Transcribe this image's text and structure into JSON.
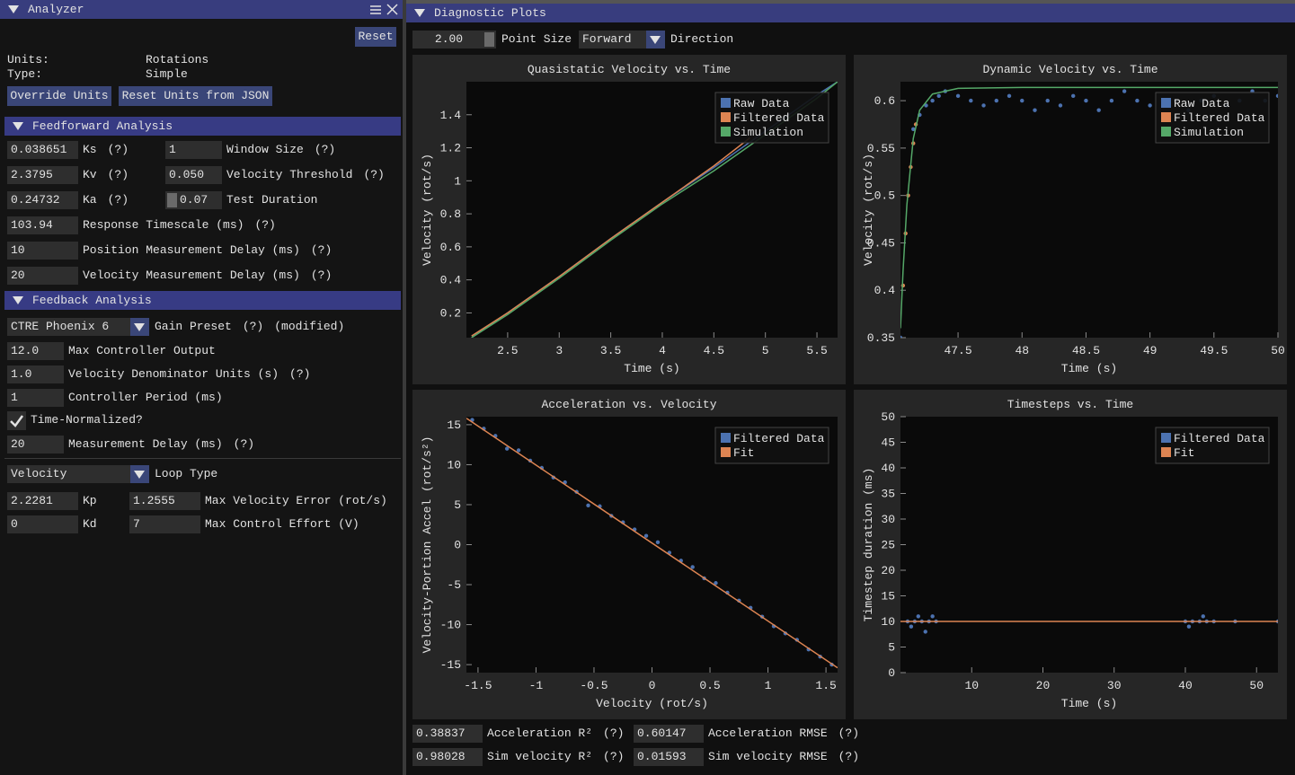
{
  "analyzer": {
    "title": "Analyzer",
    "reset": "Reset",
    "units_label": "Units:",
    "units": "Rotations",
    "type_label": "Type:",
    "type": "Simple",
    "override_units": "Override Units",
    "reset_units": "Reset Units from JSON",
    "feedforward": {
      "title": "Feedforward Analysis",
      "gains": [
        {
          "value": "0.038651",
          "label": "Ks",
          "help": "(?)"
        },
        {
          "value": "2.3795",
          "label": "Kv",
          "help": "(?)"
        },
        {
          "value": "0.24732",
          "label": "Ka",
          "help": "(?)"
        }
      ],
      "settings": [
        {
          "value": "1",
          "label": "Window Size",
          "help": "(?)"
        },
        {
          "value": "0.050",
          "label": "Velocity Threshold",
          "help": "(?)"
        },
        {
          "value": "0.07",
          "label": "Test Duration"
        }
      ],
      "rows": [
        {
          "value": "103.94",
          "label": "Response Timescale (ms)",
          "help": "(?)"
        },
        {
          "value": "10",
          "label": "Position Measurement Delay (ms)",
          "help": "(?)"
        },
        {
          "value": "20",
          "label": "Velocity Measurement Delay (ms)",
          "help": "(?)"
        }
      ]
    },
    "feedback": {
      "title": "Feedback Analysis",
      "preset": "CTRE Phoenix 6",
      "preset_label": "Gain Preset",
      "preset_help": "(?)",
      "preset_note": "(modified)",
      "rows": [
        {
          "value": "12.0",
          "label": "Max Controller Output"
        },
        {
          "value": "1.0",
          "label": "Velocity Denominator Units (s)",
          "help": "(?)"
        },
        {
          "value": "1",
          "label": "Controller Period (ms)"
        }
      ],
      "time_normalized": "Time-Normalized?",
      "delay": {
        "value": "20",
        "label": "Measurement Delay (ms)",
        "help": "(?)"
      },
      "loop_type": "Velocity",
      "loop_type_label": "Loop Type",
      "gains": [
        {
          "value": "2.2281",
          "label": "Kp"
        },
        {
          "value": "0",
          "label": "Kd"
        }
      ],
      "limits": [
        {
          "value": "1.2555",
          "label": "Max Velocity Error (rot/s)"
        },
        {
          "value": "7",
          "label": "Max Control Effort (V)"
        }
      ]
    }
  },
  "diagnostics": {
    "title": "Diagnostic Plots",
    "point_size": "2.00",
    "point_size_label": "Point Size",
    "direction": "Forward",
    "direction_label": "Direction",
    "stats": [
      {
        "value": "0.38837",
        "label": "Acceleration R²",
        "help": "(?)"
      },
      {
        "value": "0.60147",
        "label": "Acceleration RMSE",
        "help": "(?)"
      },
      {
        "value": "0.98028",
        "label": "Sim velocity R²",
        "help": "(?)"
      },
      {
        "value": "0.01593",
        "label": "Sim velocity RMSE",
        "help": "(?)"
      }
    ]
  },
  "chart_data": [
    {
      "type": "line",
      "title": "Quasistatic Velocity vs. Time",
      "x_label": "Time (s)",
      "y_label": "Velocity (rot/s)",
      "xlim": [
        2.1,
        5.7
      ],
      "xticks": [
        2.5,
        3,
        3.5,
        4,
        4.5,
        5,
        5.5
      ],
      "ylim": [
        0.05,
        1.6
      ],
      "yticks": [
        0.2,
        0.4,
        0.6,
        0.8,
        1,
        1.2,
        1.4
      ],
      "grid": false,
      "legend": "top-right",
      "series": [
        {
          "name": "Raw Data",
          "type": "line",
          "color": "#4c72b0",
          "x": [
            2.15,
            2.5,
            3,
            3.5,
            4,
            4.5,
            5,
            5.5,
            5.7
          ],
          "values": [
            0.05,
            0.2,
            0.42,
            0.65,
            0.87,
            1.08,
            1.3,
            1.52,
            1.6
          ]
        },
        {
          "name": "Filtered Data",
          "type": "line",
          "color": "#dd8452",
          "x": [
            2.15,
            2.5,
            3,
            3.5,
            4,
            4.5,
            4.85
          ],
          "values": [
            0.06,
            0.2,
            0.42,
            0.65,
            0.87,
            1.09,
            1.26
          ]
        },
        {
          "name": "Simulation",
          "type": "line",
          "color": "#55a868",
          "x": [
            2.15,
            2.5,
            3,
            3.5,
            4,
            4.5,
            5,
            5.5,
            5.7
          ],
          "values": [
            0.05,
            0.19,
            0.41,
            0.64,
            0.86,
            1.06,
            1.28,
            1.5,
            1.6
          ]
        }
      ]
    },
    {
      "type": "scatter",
      "title": "Dynamic Velocity vs. Time",
      "x_label": "Time (s)",
      "y_label": "Velocity (rot/s)",
      "xlim": [
        47.05,
        50
      ],
      "xticks": [
        47.5,
        48,
        48.5,
        49,
        49.5,
        50
      ],
      "ylim": [
        0.35,
        0.62
      ],
      "yticks": [
        0.35,
        0.4,
        0.45,
        0.5,
        0.55,
        0.6
      ],
      "grid": false,
      "legend": "top-right",
      "series": [
        {
          "name": "Raw Data",
          "type": "scatter",
          "color": "#4c72b0",
          "x": [
            47.05,
            47.15,
            47.2,
            47.25,
            47.3,
            47.35,
            47.4,
            47.5,
            47.6,
            47.7,
            47.8,
            47.9,
            48.0,
            48.1,
            48.2,
            48.3,
            48.4,
            48.5,
            48.6,
            48.7,
            48.8,
            48.9,
            49.0,
            49.1,
            49.2,
            49.3,
            49.4,
            49.5,
            49.6,
            49.7,
            49.8,
            49.9,
            50.0
          ],
          "values": [
            0.35,
            0.57,
            0.585,
            0.595,
            0.6,
            0.605,
            0.61,
            0.605,
            0.6,
            0.595,
            0.6,
            0.605,
            0.6,
            0.59,
            0.6,
            0.595,
            0.605,
            0.6,
            0.59,
            0.6,
            0.61,
            0.6,
            0.595,
            0.6,
            0.6,
            0.59,
            0.6,
            0.605,
            0.595,
            0.6,
            0.61,
            0.6,
            0.605
          ]
        },
        {
          "name": "Filtered Data",
          "type": "scatter",
          "color": "#dd8452",
          "x": [
            47.07,
            47.09,
            47.11,
            47.13,
            47.15,
            47.17
          ],
          "values": [
            0.405,
            0.46,
            0.5,
            0.53,
            0.555,
            0.575
          ]
        },
        {
          "name": "Simulation",
          "type": "line",
          "color": "#55a868",
          "x": [
            47.05,
            47.07,
            47.1,
            47.15,
            47.2,
            47.3,
            47.5,
            48,
            50
          ],
          "values": [
            0.36,
            0.42,
            0.49,
            0.56,
            0.59,
            0.607,
            0.613,
            0.614,
            0.614
          ]
        }
      ]
    },
    {
      "type": "scatter",
      "title": "Acceleration vs. Velocity",
      "x_label": "Velocity (rot/s)",
      "y_label": "Velocity-Portion Accel (rot/s²)",
      "xlim": [
        -1.6,
        1.6
      ],
      "xticks": [
        -1.5,
        -1,
        -0.5,
        0,
        0.5,
        1,
        1.5
      ],
      "ylim": [
        -16,
        16
      ],
      "yticks": [
        -15,
        -10,
        -5,
        0,
        5,
        10,
        15
      ],
      "grid": false,
      "legend": "top-right",
      "series": [
        {
          "name": "Filtered Data",
          "type": "scatter",
          "color": "#4c72b0",
          "x": [
            -1.55,
            -1.45,
            -1.35,
            -1.25,
            -1.15,
            -1.05,
            -0.95,
            -0.85,
            -0.75,
            -0.65,
            -0.55,
            -0.45,
            -0.35,
            -0.25,
            -0.15,
            -0.05,
            0.05,
            0.15,
            0.25,
            0.35,
            0.45,
            0.55,
            0.65,
            0.75,
            0.85,
            0.95,
            1.05,
            1.15,
            1.25,
            1.35,
            1.45,
            1.55
          ],
          "values": [
            15.6,
            14.5,
            13.6,
            12.0,
            11.8,
            10.5,
            9.6,
            8.4,
            7.8,
            6.6,
            4.9,
            4.8,
            3.6,
            2.8,
            1.9,
            1.1,
            0.3,
            -1.0,
            -2.0,
            -2.8,
            -4.2,
            -4.8,
            -6.0,
            -7.0,
            -7.9,
            -9.0,
            -10.2,
            -11.1,
            -11.9,
            -13.1,
            -14.0,
            -15.0
          ]
        },
        {
          "name": "Fit",
          "type": "line",
          "color": "#dd8452",
          "x": [
            -1.6,
            1.6
          ],
          "values": [
            15.8,
            -15.4
          ]
        }
      ]
    },
    {
      "type": "scatter",
      "title": "Timesteps vs. Time",
      "x_label": "Time (s)",
      "y_label": "Timestep duration (ms)",
      "xlim": [
        0,
        53
      ],
      "xticks": [
        10,
        20,
        30,
        40,
        50
      ],
      "ylim": [
        0,
        50
      ],
      "yticks": [
        0,
        5,
        10,
        15,
        20,
        25,
        30,
        35,
        40,
        45,
        50
      ],
      "grid": false,
      "legend": "top-right",
      "series": [
        {
          "name": "Filtered Data",
          "type": "scatter",
          "color": "#4c72b0",
          "x": [
            1,
            2,
            3,
            4,
            5,
            1.5,
            2.5,
            3.5,
            4.5,
            40,
            41,
            42,
            43,
            44,
            40.5,
            42.5,
            47,
            53
          ],
          "values": [
            10,
            10,
            10,
            10,
            10,
            9,
            11,
            8,
            11,
            10,
            10,
            10,
            10,
            10,
            9,
            11,
            10,
            10
          ]
        },
        {
          "name": "Fit",
          "type": "line",
          "color": "#dd8452",
          "x": [
            0,
            53
          ],
          "values": [
            10,
            10
          ]
        }
      ]
    }
  ]
}
